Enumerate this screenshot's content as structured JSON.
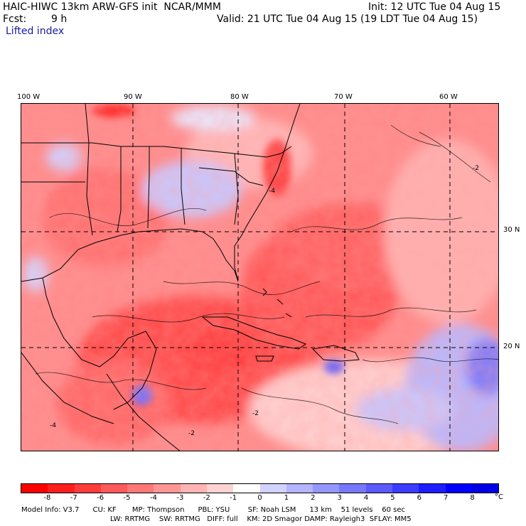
{
  "header": {
    "title": "HAIC-HIWC 13km ARW-GFS init  NCAR/MMM",
    "init": "Init: 12 UTC Tue 04 Aug 15",
    "fcst_label": "Fcst:",
    "fcst_value": "9 h",
    "valid": "Valid: 21 UTC Tue 04 Aug 15 (19 LDT Tue 04 Aug 15)",
    "field": "Lifted index"
  },
  "map": {
    "lon_ticks": [
      "100 W",
      "90 W",
      "80 W",
      "70 W",
      "60 W"
    ],
    "lat_ticks": [
      "30 N",
      "20 N"
    ],
    "contour_labels": [
      "-4",
      "-4",
      "-2",
      "-2",
      "-2"
    ]
  },
  "colorbar": {
    "colors": [
      "#ff0000",
      "#ff1e1e",
      "#ff3c3c",
      "#ff5a5a",
      "#ff7878",
      "#ff9696",
      "#ffb4b4",
      "#ffd2d2",
      "#ffffff",
      "#d2d2ff",
      "#b4b4ff",
      "#9696ff",
      "#7878ff",
      "#5a5aff",
      "#3c3cff",
      "#1e1eff",
      "#0000ff",
      "#0000e6"
    ],
    "labels": [
      "-8",
      "-7",
      "-6",
      "-5",
      "-4",
      "-3",
      "-2",
      "-1",
      "0",
      "1",
      "2",
      "3",
      "4",
      "5",
      "6",
      "7",
      "8"
    ],
    "unit": "°C"
  },
  "footer": {
    "line1": "Model Info: V3.7      CU: KF       MP: Thompson      PBL: YSU        SF: Noah LSM      13 km    51 levels    60 sec",
    "line2": "LW: RRTMG    SW: RRTMG   DIFF: full    KM: 2D Smagor DAMP: Rayleigh3  SFLAY: MM5"
  }
}
